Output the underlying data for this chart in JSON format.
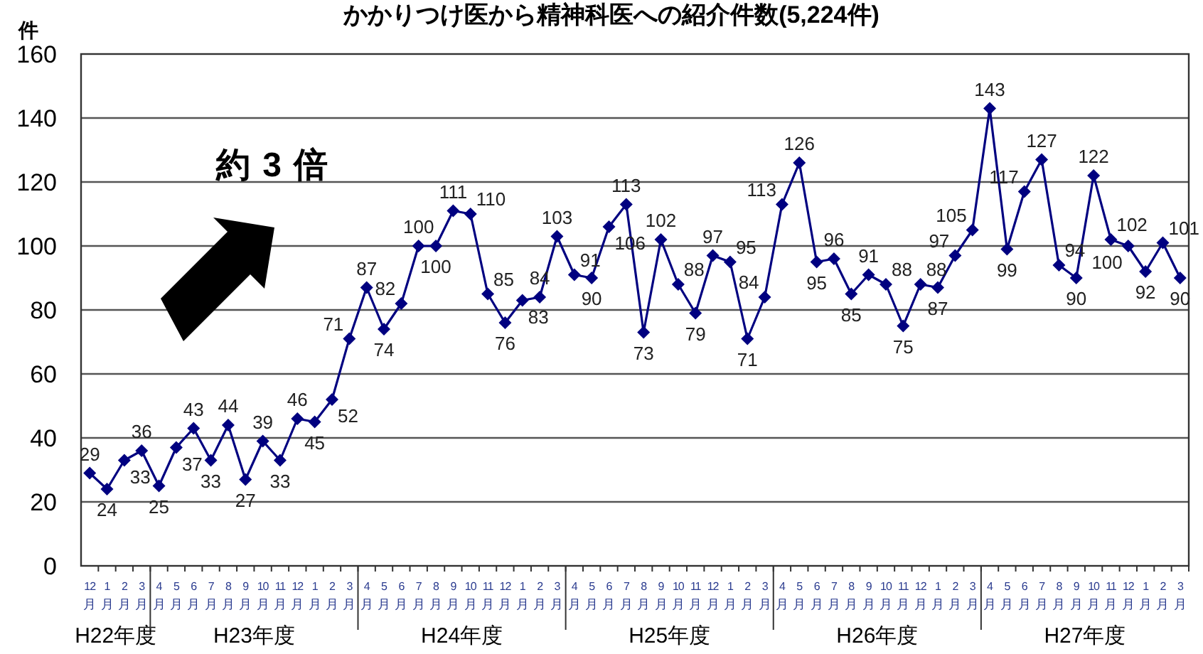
{
  "chart_data": {
    "type": "line",
    "title": "かかりつけ医から精神科医への紹介件数(5,224件)",
    "ylabel": "件",
    "categories": [
      "12月",
      "1月",
      "2月",
      "3月",
      "4月",
      "5月",
      "6月",
      "7月",
      "8月",
      "9月",
      "10月",
      "11月",
      "12月",
      "1月",
      "2月",
      "3月",
      "4月",
      "5月",
      "6月",
      "7月",
      "8月",
      "9月",
      "10月",
      "11月",
      "12月",
      "1月",
      "2月",
      "3月",
      "4月",
      "5月",
      "6月",
      "7月",
      "8月",
      "9月",
      "10月",
      "11月",
      "12月",
      "1月",
      "2月",
      "3月",
      "4月",
      "5月",
      "6月",
      "7月",
      "8月",
      "9月",
      "10月",
      "11月",
      "12月",
      "1月",
      "2月",
      "3月",
      "4月",
      "5月",
      "6月",
      "7月",
      "8月",
      "9月",
      "10月",
      "11月",
      "12月",
      "1月",
      "2月",
      "3月"
    ],
    "series": [
      {
        "color": "#000080",
        "values": [
          29,
          24,
          33,
          36,
          25,
          37,
          43,
          33,
          44,
          27,
          39,
          33,
          46,
          45,
          52,
          71,
          87,
          74,
          82,
          100,
          100,
          111,
          110,
          85,
          76,
          83,
          84,
          103,
          91,
          90,
          106,
          113,
          73,
          102,
          88,
          79,
          97,
          95,
          71,
          84,
          113,
          126,
          95,
          96,
          85,
          91,
          88,
          75,
          88,
          87,
          97,
          105,
          143,
          99,
          117,
          127,
          94,
          90,
          122,
          102,
          100,
          92,
          101,
          90
        ]
      }
    ],
    "ylim": [
      0,
      160
    ],
    "yticks": [
      0,
      20,
      40,
      60,
      80,
      100,
      120,
      140,
      160
    ],
    "grid": "y",
    "marker": "diamond",
    "line_style": "solid",
    "data_labels": true,
    "annotations": [
      "約 3 倍",
      "H22年度",
      "H23年度",
      "H24年度",
      "H25年度",
      "H26年度",
      "H27年度"
    ]
  }
}
